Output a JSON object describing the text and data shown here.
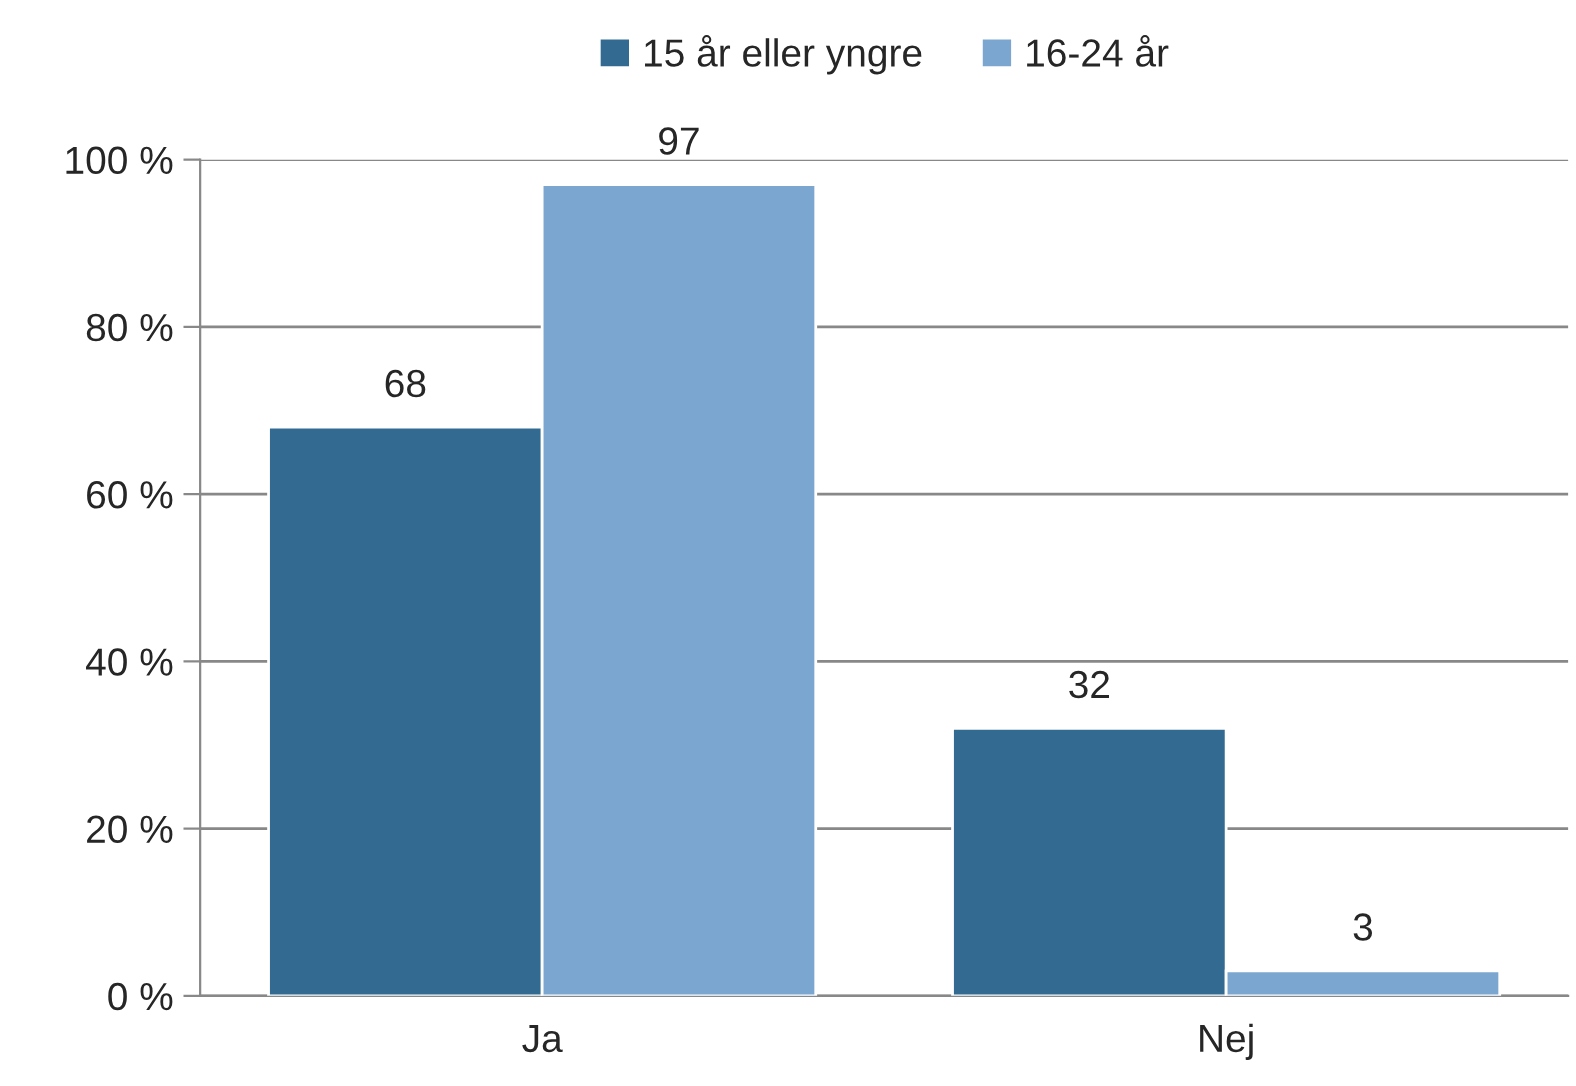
{
  "chart_data": {
    "type": "bar",
    "categories": [
      "Ja",
      "Nej"
    ],
    "series": [
      {
        "name": "15 år eller yngre",
        "color": "#336a91",
        "values": [
          68,
          32
        ]
      },
      {
        "name": "16-24 år",
        "color": "#7aa6d0",
        "values": [
          97,
          3
        ]
      }
    ],
    "ylim": [
      0,
      100
    ],
    "yticks": [
      {
        "value": 0,
        "label": "0 %"
      },
      {
        "value": 20,
        "label": "20 %"
      },
      {
        "value": 40,
        "label": "40 %"
      },
      {
        "value": 60,
        "label": "60 %"
      },
      {
        "value": 80,
        "label": "80 %"
      },
      {
        "value": 100,
        "label": "100 %"
      }
    ],
    "grid": "y",
    "legend": "top",
    "data_labels": true
  }
}
